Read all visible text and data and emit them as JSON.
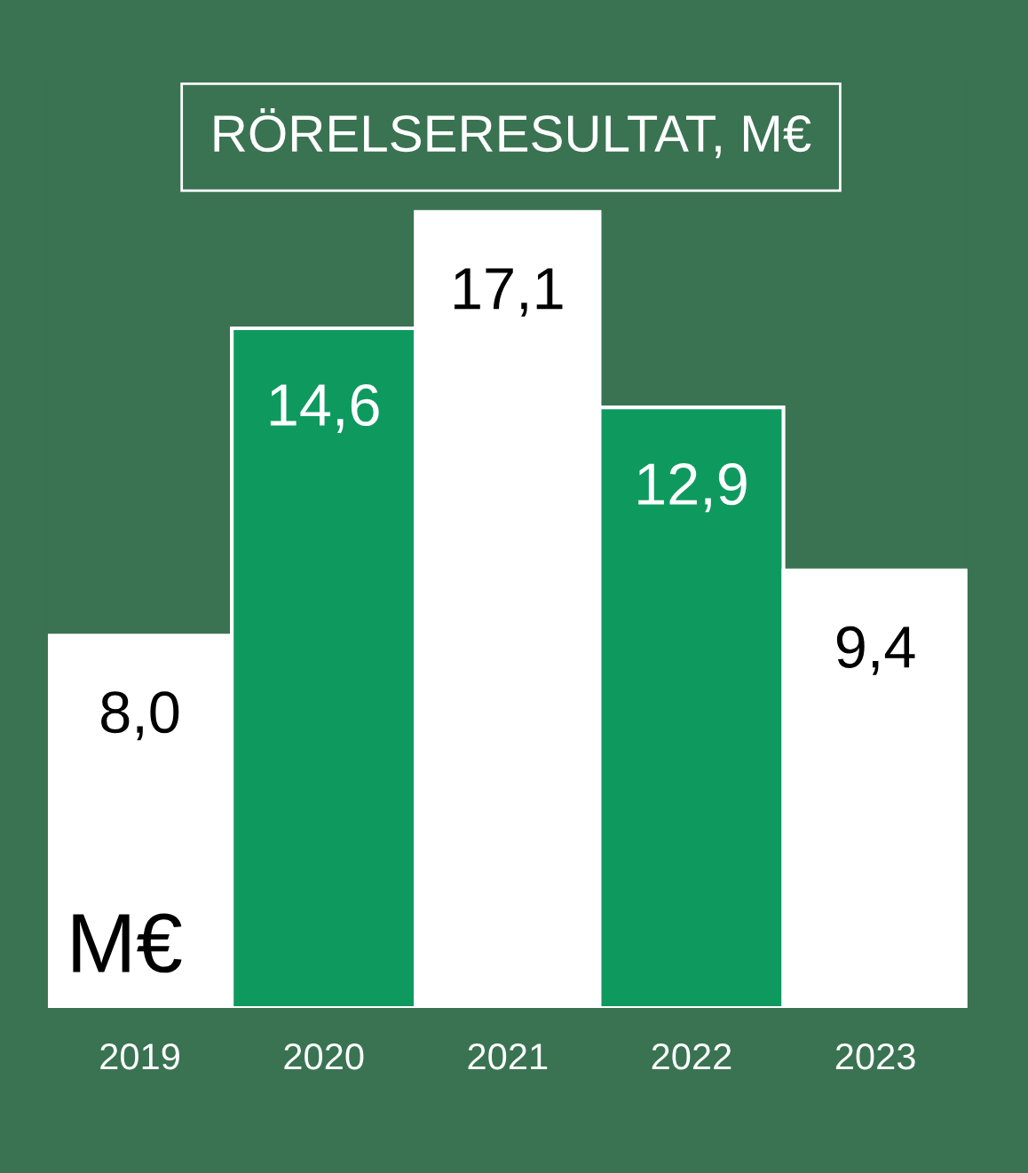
{
  "chart_data": {
    "type": "bar",
    "title": "RÖRELSERESULTAT, M€",
    "categories": [
      "2019",
      "2020",
      "2021",
      "2022",
      "2023"
    ],
    "values": [
      8.0,
      14.6,
      17.1,
      12.9,
      9.4
    ],
    "colors": [
      "#ffffff",
      "#0e9a5f",
      "#ffffff",
      "#0e9a5f",
      "#ffffff"
    ],
    "value_labels": [
      "8,0",
      "14,6",
      "17,1",
      "12,9",
      "9,4"
    ],
    "annotations": [
      "M€"
    ],
    "grid": false,
    "legend": false
  }
}
